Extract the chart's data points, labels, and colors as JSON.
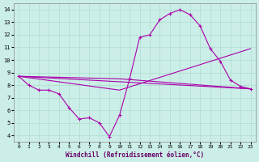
{
  "xlabel": "Windchill (Refroidissement éolien,°C)",
  "background_color": "#cceee8",
  "grid_color": "#aaddcc",
  "line_color": "#aa00aa",
  "line_color2": "#880088",
  "xlim": [
    -0.5,
    23.5
  ],
  "ylim": [
    3.5,
    14.5
  ],
  "yticks": [
    4,
    5,
    6,
    7,
    8,
    9,
    10,
    11,
    12,
    13,
    14
  ],
  "xticks": [
    0,
    1,
    2,
    3,
    4,
    5,
    6,
    7,
    8,
    9,
    10,
    11,
    12,
    13,
    14,
    15,
    16,
    17,
    18,
    19,
    20,
    21,
    22,
    23
  ],
  "series1_x": [
    0,
    1,
    2,
    3,
    4,
    5,
    6,
    7,
    8,
    9,
    10,
    11,
    12,
    13,
    14,
    15,
    16,
    17,
    18,
    19,
    20,
    21,
    22,
    23
  ],
  "series1_y": [
    8.7,
    8.0,
    7.6,
    7.6,
    7.3,
    6.2,
    5.3,
    5.4,
    5.0,
    3.9,
    5.6,
    8.5,
    11.8,
    12.0,
    13.2,
    13.7,
    14.0,
    13.6,
    12.7,
    10.9,
    9.9,
    8.4,
    7.9,
    7.7
  ],
  "series2_x": [
    0,
    23
  ],
  "series2_y": [
    8.7,
    7.7
  ],
  "series3_x": [
    0,
    10,
    23
  ],
  "series3_y": [
    8.7,
    7.6,
    10.9
  ],
  "series4_x": [
    0,
    10,
    23
  ],
  "series4_y": [
    8.7,
    8.5,
    7.7
  ],
  "line_width": 0.8,
  "marker": "+"
}
